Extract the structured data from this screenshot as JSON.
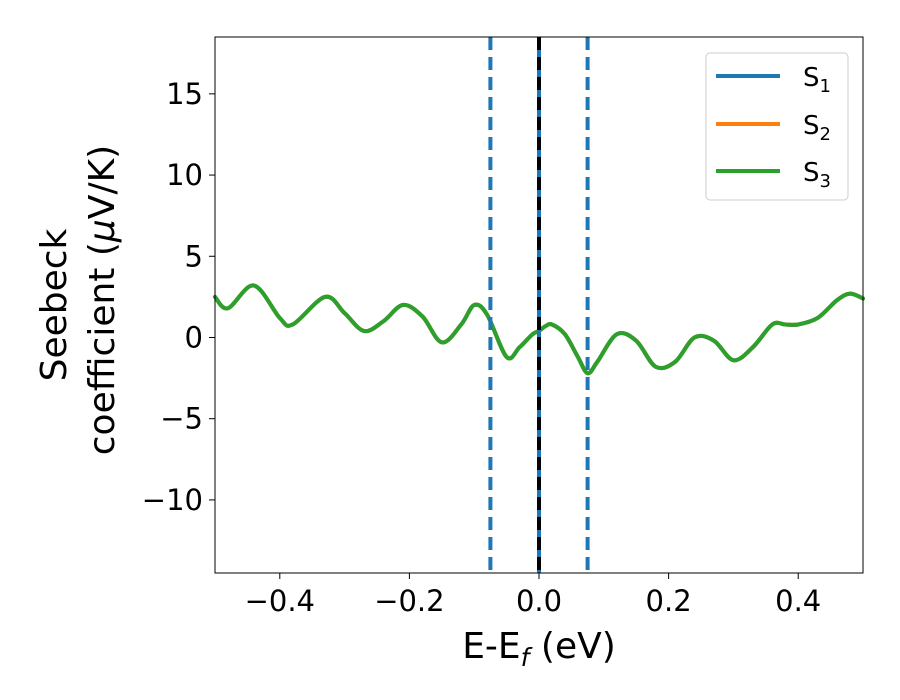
{
  "chart_data": {
    "type": "line",
    "xlabel": {
      "main": "E-E",
      "sub": "f",
      "tail": " (eV)"
    },
    "ylabel": {
      "line1": "Seebeck",
      "line2_pre": "coefficient  (",
      "line2_mu": "μ",
      "line2_post": "V/K)"
    },
    "xlim": [
      -0.5,
      0.5
    ],
    "ylim": [
      -14.5,
      18.5
    ],
    "xticks": [
      -0.4,
      -0.2,
      0.0,
      0.2,
      0.4
    ],
    "xtick_labels": [
      "−0.4",
      "−0.2",
      "0.0",
      "0.2",
      "0.4"
    ],
    "yticks": [
      15,
      10,
      5,
      0,
      -5,
      -10
    ],
    "ytick_labels": [
      "15",
      "10",
      "5",
      "0",
      "−5",
      "−10"
    ],
    "legend_position": "top-right",
    "series": [
      {
        "name": "S",
        "sub": "1",
        "color": "#1f77b4",
        "x": [
          -0.5,
          -0.48,
          -0.44,
          -0.4,
          -0.38,
          -0.33,
          -0.3,
          -0.27,
          -0.24,
          -0.21,
          -0.18,
          -0.15,
          -0.12,
          -0.1,
          -0.08,
          -0.05,
          -0.03,
          -0.01,
          0.0,
          0.01,
          0.02,
          0.04,
          0.06,
          0.075,
          0.09,
          0.12,
          0.15,
          0.18,
          0.21,
          0.24,
          0.27,
          0.3,
          0.33,
          0.36,
          0.38,
          0.4,
          0.43,
          0.46,
          0.48,
          0.5
        ],
        "y": [
          2.5,
          1.8,
          3.2,
          1.2,
          0.8,
          2.5,
          1.5,
          0.4,
          1.0,
          2.0,
          1.3,
          -0.3,
          0.8,
          2.0,
          1.4,
          -1.2,
          -0.6,
          0.2,
          0.4,
          0.7,
          0.8,
          0.2,
          -1.2,
          -2.2,
          -1.5,
          0.2,
          -0.2,
          -1.8,
          -1.5,
          0.0,
          -0.2,
          -1.4,
          -0.6,
          0.8,
          0.8,
          0.8,
          1.2,
          2.3,
          2.7,
          2.4
        ]
      },
      {
        "name": "S",
        "sub": "2",
        "color": "#ff7f0e",
        "x": [
          -0.5,
          -0.48,
          -0.44,
          -0.4,
          -0.38,
          -0.33,
          -0.3,
          -0.27,
          -0.24,
          -0.21,
          -0.18,
          -0.15,
          -0.12,
          -0.1,
          -0.08,
          -0.05,
          -0.03,
          -0.01,
          0.0,
          0.01,
          0.02,
          0.04,
          0.06,
          0.075,
          0.09,
          0.12,
          0.15,
          0.18,
          0.21,
          0.24,
          0.27,
          0.3,
          0.33,
          0.36,
          0.38,
          0.4,
          0.43,
          0.46,
          0.48,
          0.5
        ],
        "y": [
          2.5,
          1.8,
          3.2,
          1.2,
          0.8,
          2.5,
          1.5,
          0.4,
          1.0,
          2.0,
          1.3,
          -0.3,
          0.8,
          2.0,
          1.4,
          -1.2,
          -0.6,
          0.2,
          0.4,
          0.7,
          0.8,
          0.2,
          -1.2,
          -2.2,
          -1.5,
          0.2,
          -0.2,
          -1.8,
          -1.5,
          0.0,
          -0.2,
          -1.4,
          -0.6,
          0.8,
          0.8,
          0.8,
          1.2,
          2.3,
          2.7,
          2.4
        ]
      },
      {
        "name": "S",
        "sub": "3",
        "color": "#2ca02c",
        "x": [
          -0.5,
          -0.48,
          -0.44,
          -0.4,
          -0.38,
          -0.33,
          -0.3,
          -0.27,
          -0.24,
          -0.21,
          -0.18,
          -0.15,
          -0.12,
          -0.1,
          -0.08,
          -0.05,
          -0.03,
          -0.01,
          0.0,
          0.01,
          0.02,
          0.04,
          0.06,
          0.075,
          0.09,
          0.12,
          0.15,
          0.18,
          0.21,
          0.24,
          0.27,
          0.3,
          0.33,
          0.36,
          0.38,
          0.4,
          0.43,
          0.46,
          0.48,
          0.5
        ],
        "y": [
          2.5,
          1.8,
          3.2,
          1.2,
          0.8,
          2.5,
          1.5,
          0.4,
          1.0,
          2.0,
          1.3,
          -0.3,
          0.8,
          2.0,
          1.4,
          -1.2,
          -0.6,
          0.2,
          0.4,
          0.7,
          0.8,
          0.2,
          -1.2,
          -2.2,
          -1.5,
          0.2,
          -0.2,
          -1.8,
          -1.5,
          0.0,
          -0.2,
          -1.4,
          -0.6,
          0.8,
          0.8,
          0.8,
          1.2,
          2.3,
          2.7,
          2.4
        ]
      }
    ],
    "vlines": [
      {
        "x": -0.075,
        "style": "dashed",
        "color": "#1f77b4"
      },
      {
        "x": 0.075,
        "style": "dashed",
        "color": "#1f77b4"
      },
      {
        "x": 0.0,
        "style": "solid",
        "color": "#1f77b4"
      },
      {
        "x": 0.0,
        "style": "dashed",
        "color": "#000000"
      }
    ]
  }
}
